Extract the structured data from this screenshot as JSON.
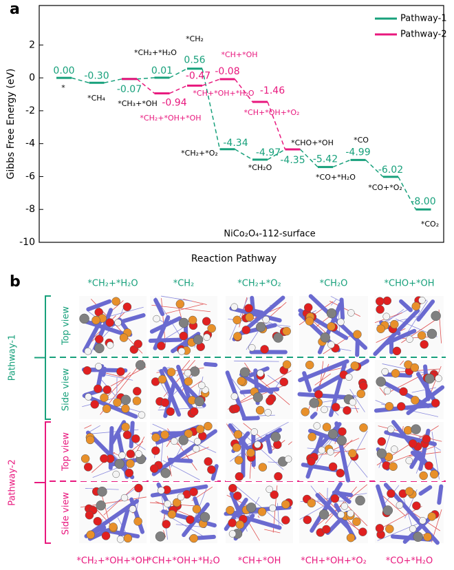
{
  "chart_data": {
    "type": "energy",
    "y_label": "Gibbs Free Energy (eV)",
    "x_label": "Reaction Pathway",
    "annotation": "NiCo₂O₄-112-surface",
    "panel_label": "a",
    "categories": [
      null,
      null,
      null,
      null,
      null,
      null,
      null,
      null,
      null,
      null,
      null,
      null
    ],
    "ylim": [
      -10,
      4.4
    ],
    "yticks": [
      -10,
      -8,
      -6,
      -4,
      -2,
      0,
      2
    ],
    "legend": "upper right",
    "series": [
      {
        "name": "Pathway-1",
        "color": "#17a07b",
        "label_color": "#000000",
        "values": [
          0.0,
          -0.3,
          -0.07,
          0.01,
          0.56,
          -4.34,
          -4.97,
          -4.35,
          -5.42,
          -4.99,
          -6.02,
          -8.0
        ],
        "value_labels": [
          "0.00",
          "-0.30",
          "-0.07",
          "0.01",
          "0.56",
          "-4.34",
          "-4.97",
          "-4.35",
          "-5.42",
          "-4.99",
          "-6.02",
          "-8.00"
        ],
        "labels": [
          "*",
          "*CH₄",
          "*CH₃+*OH",
          "*CH₂+*H₂O",
          "*CH₂",
          "*CH₂+*O₂",
          "*CH₂O",
          "*CHO+*OH",
          "*CO+*H₂O",
          "*CO",
          "*CO+*O₂",
          "*CO₂"
        ]
      },
      {
        "name": "Pathway-2",
        "color": "#e8177d",
        "label_color": "#e8177d",
        "values": [
          null,
          null,
          -0.07,
          -0.94,
          -0.47,
          -0.08,
          -1.46,
          -4.35,
          null,
          null,
          null,
          null
        ],
        "value_labels": [
          null,
          null,
          null,
          "-0.94",
          "-0.47",
          "-0.08",
          "-1.46",
          null,
          null,
          null,
          null,
          null
        ],
        "labels": [
          "*CH+*OH",
          "*CH+*OH+*H₂O",
          "*CH+*OH+*O₂",
          "*CH₂+*OH+*OH"
        ]
      }
    ]
  },
  "panel_b": {
    "label": "b",
    "pathway_1_states": [
      "*CH₂+*H₂O",
      "*CH₂",
      "*CH₂+*O₂",
      "*CH₂O",
      "*CHO+*OH"
    ],
    "pathway_2_states": [
      "*CH₂+*OH+*OH",
      "*CH+*OH+*H₂O",
      "*CH+*OH",
      "*CH+*OH+*O₂",
      "*CO+*H₂O"
    ],
    "rows": [
      {
        "pathway": "Pathway-1",
        "views": [
          "Top view",
          "Side view"
        ]
      },
      {
        "pathway": "Pathway-2",
        "views": [
          "Top view",
          "Side view"
        ]
      }
    ]
  }
}
